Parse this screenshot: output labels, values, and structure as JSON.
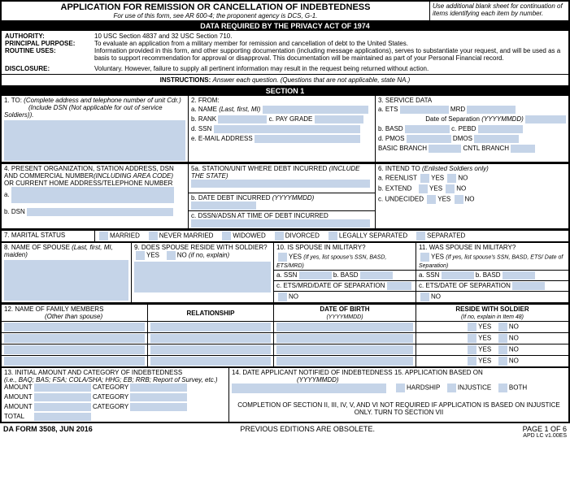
{
  "colors": {
    "fill": "#c5d4e8",
    "border": "#000000",
    "bar_bg": "#000000",
    "bar_fg": "#ffffff"
  },
  "header": {
    "title": "APPLICATION FOR REMISSION OR CANCELLATION OF INDEBTEDNESS",
    "subtitle": "For use of this form, see AR 600-4; the proponent agency is DCS, G-1.",
    "side_note": "Use additional blank sheet for continuation of items identifying each item by number."
  },
  "privacy": {
    "bar": "DATA REQUIRED BY THE PRIVACY ACT OF 1974",
    "authority_lbl": "AUTHORITY:",
    "authority": "10 USC Section 4837 and 32 USC Section 710.",
    "purpose_lbl": "PRINCIPAL PURPOSE:",
    "purpose": "To evaluate an application from a military member for remission and cancellation of debt to the United States.",
    "routine_lbl": "ROUTINE USES:",
    "routine": "Information provided in this form, and other supporting documentation (including message applications), serves to substantiate your request, and will be used as a basis to support recommendation for approval or disapproval.  This documentation will be maintained as part of your Personal Financial record.",
    "disclosure_lbl": "DISCLOSURE:",
    "disclosure": "Voluntary. However, failure to supply all pertinent information may result in the request being returned without action."
  },
  "instructions": {
    "lbl": "INSTRUCTIONS:",
    "txt": "Answer each question.  (Questions that are not applicable, state NA.)"
  },
  "section1_bar": "SECTION 1",
  "s1": {
    "to_lbl": "1.  TO:",
    "to_note": "(Complete address and telephone number of unit Cdr.)",
    "to_note2": "(Include DSN (Not applicable for out of service Soldiers)).",
    "from_lbl": "2.  FROM:",
    "name_lbl": "a.  NAME",
    "name_note": "(Last, first, MI)",
    "rank_lbl": "b.  RANK",
    "paygrade_lbl": "c.  PAY GRADE",
    "ssn_lbl": "d.  SSN",
    "email_lbl": "e.  E-MAIL ADDRESS",
    "svc_lbl": "3.  SERVICE DATA",
    "ets_lbl": "a.  ETS",
    "mrd_lbl": "MRD",
    "sep_lbl": "Date of Separation",
    "sep_note": "(YYYYMMDD)",
    "basd_lbl": "b.  BASD",
    "pebd_lbl": "c.  PEBD",
    "pmos_lbl": "d.  PMOS",
    "dmos_lbl": "DMOS",
    "basic_branch": "BASIC BRANCH",
    "cntl_branch": "CNTL BRANCH"
  },
  "s4": {
    "lbl": "4.  PRESENT ORGANIZATION, STATION ADDRESS, DSN AND COMMERCIAL NUMBER",
    "note": "(INCLUDING AREA CODE)",
    "or": "OR CURRENT HOME ADDRESS/TELEPHONE NUMBER",
    "a": "a.",
    "dsn": "b.  DSN",
    "s5a": "5a.  STATION/UNIT WHERE DEBT INCURRED",
    "s5a_note": "(INCLUDE THE STATE)",
    "s5b": "b.  DATE DEBT INCURRED",
    "s5b_note": "(YYYYMMDD)",
    "s5c": "c.  DSSN/ADSN AT TIME OF DEBT INCURRED",
    "s6": "6.  INTEND TO",
    "s6_note": "(Enlisted Soldiers only)",
    "reenlist": "a.  REENLIST",
    "extend": "b.  EXTEND",
    "undecided": "c.  UNDECIDED",
    "yes": "YES",
    "no": "NO"
  },
  "s7": {
    "lbl": "7.  MARITAL STATUS",
    "married": "MARRIED",
    "never": "NEVER MARRIED",
    "widowed": "WIDOWED",
    "divorced": "DIVORCED",
    "legal": "LEGALLY SEPARATED",
    "sep": "SEPARATED"
  },
  "s8": {
    "lbl": "8.  NAME OF SPOUSE",
    "note": "(Last, first, MI, maiden)",
    "s9": "9.  DOES SPOUSE RESIDE WITH SOLDIER?",
    "yes": "YES",
    "no": "NO",
    "no_note": "(if no, explain)",
    "s10": "10.  IS SPOUSE IN MILITARY?",
    "s10_note": "(If yes, list spouse's SSN, BASD, ETS/MRD)",
    "ssn": "a.  SSN",
    "basd": "b.  BASD",
    "ets": "c.  ETS/MRD/DATE OF SEPARATION",
    "s11": "11.  WAS SPOUSE IN MILITARY?",
    "s11_note": "(If yes, list spouse's SSN, BASD, ETS/ Date of Separation)",
    "ets2": "c.  ETS/DATE OF SEPARATION"
  },
  "s12": {
    "lbl": "12.  NAME OF FAMILY MEMBERS",
    "note": "(Other than spouse)",
    "rel": "RELATIONSHIP",
    "dob": "DATE OF BIRTH",
    "dob_note": "(YYYYMMDD)",
    "reside": "RESIDE WITH SOLDIER",
    "reside_note": "(If no, explain in Item 48)",
    "yes": "YES",
    "no": "NO"
  },
  "s13": {
    "lbl": "13.  INITIAL AMOUNT AND CATEGORY OF INDEBTEDNESS",
    "note": "(i.e., BAQ; BAS; FSA; COLA/SHA; HHG; EB; RRB; Report of Survey, etc.)",
    "amount": "AMOUNT",
    "category": "CATEGORY",
    "total": "TOTAL",
    "s14": "14.  DATE APPLICANT NOTIFIED OF INDEBTEDNESS",
    "s14_note": "(YYYYMMDD)",
    "s15": "15.  APPLICATION BASED ON",
    "hardship": "HARDSHIP",
    "injustice": "INJUSTICE",
    "both": "BOTH",
    "completion": "COMPLETION OF SECTION II, III, IV, V, AND VI NOT REQUIRED IF APPLICATION IS BASED ON INJUSTICE ONLY.  TURN TO SECTION VII"
  },
  "footer": {
    "form": "DA FORM 3508, JUN 2016",
    "prev": "PREVIOUS EDITIONS ARE OBSOLETE.",
    "page": "PAGE  1 OF 6",
    "ver": "APD LC v1.00ES"
  }
}
